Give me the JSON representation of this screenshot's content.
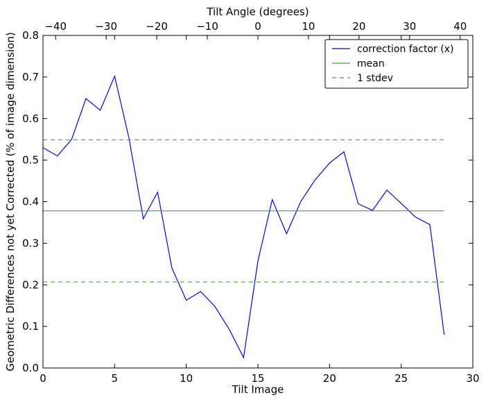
{
  "chart_data": {
    "type": "line",
    "title": "",
    "xlabel": "Tilt Image",
    "ylabel": "Geometric Differences not yet Corrected (% of image dimension)",
    "top_xlabel": "Tilt Angle (degrees)",
    "xlim": [
      0,
      30
    ],
    "ylim": [
      0.0,
      0.8
    ],
    "top_xlim": [
      -42.5,
      42.5
    ],
    "x_ticks": [
      "0",
      "5",
      "10",
      "15",
      "20",
      "25",
      "30"
    ],
    "y_ticks": [
      "0.0",
      "0.1",
      "0.2",
      "0.3",
      "0.4",
      "0.5",
      "0.6",
      "0.7",
      "0.8"
    ],
    "top_ticks": [
      "−40",
      "−30",
      "−20",
      "−10",
      "0",
      "10",
      "20",
      "30",
      "40"
    ],
    "grid": false,
    "legend_position": "top-right",
    "series": [
      {
        "name": "correction factor (x)",
        "color": "#0000ff",
        "style": "solid",
        "x": [
          0,
          1,
          2,
          3,
          4,
          5,
          6,
          7,
          8,
          9,
          10,
          11,
          12,
          13,
          14,
          15,
          16,
          17,
          18,
          19,
          20,
          21,
          22,
          23,
          24,
          25,
          26,
          27,
          28
        ],
        "values": [
          0.53,
          0.51,
          0.55,
          0.648,
          0.62,
          0.702,
          0.553,
          0.359,
          0.423,
          0.24,
          0.163,
          0.184,
          0.148,
          0.093,
          0.025,
          0.257,
          0.405,
          0.323,
          0.401,
          0.453,
          0.493,
          0.52,
          0.395,
          0.379,
          0.428,
          0.396,
          0.363,
          0.345,
          0.08
        ]
      },
      {
        "name": "mean",
        "color": "#3aa63a",
        "style": "solid",
        "x": [
          0,
          28
        ],
        "values": [
          0.378,
          0.378
        ]
      },
      {
        "name": "1 stdev",
        "color": "#3aa63a",
        "style": "dashed",
        "x": [
          0,
          28
        ],
        "values": [
          0.549,
          0.549
        ]
      },
      {
        "name": "",
        "color": "#3aa63a",
        "style": "dashed",
        "x": [
          0,
          28
        ],
        "values": [
          0.207,
          0.207
        ]
      }
    ]
  }
}
